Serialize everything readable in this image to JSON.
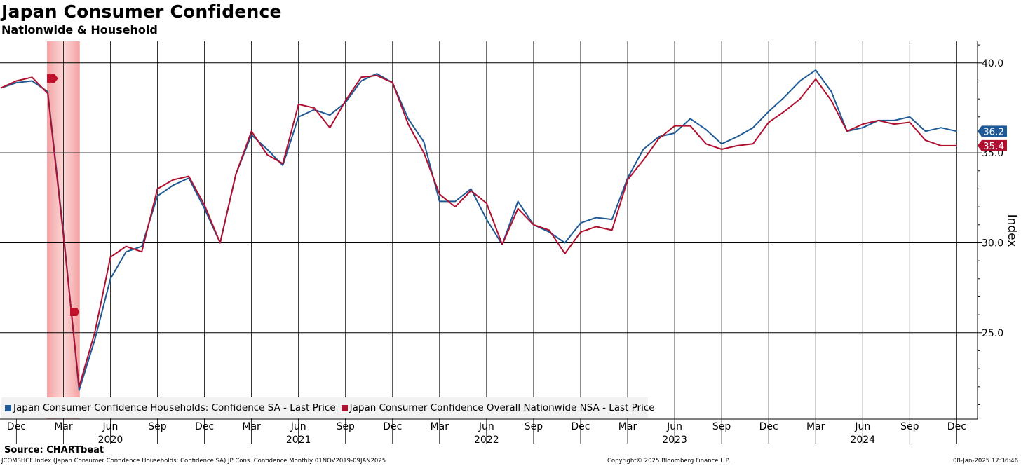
{
  "header": {
    "title": "Japan Consumer Confidence",
    "subtitle": "Nationwide & Household"
  },
  "footer": {
    "source": "Source: CHARTbeat",
    "ticker_line": "JCOMSHCF Index (Japan Consumer Confidence Households: Confidence SA) JP Cons. Confidence  Monthly 01NOV2019-09JAN2025",
    "copyright": "Copyright© 2025 Bloomberg Finance L.P.",
    "timestamp": "08-Jan-2025 17:36:46"
  },
  "chart_data": {
    "type": "line",
    "ylabel": "Index",
    "ylim": [
      20.2,
      41.2
    ],
    "yticks": [
      25.0,
      30.0,
      35.0,
      40.0
    ],
    "ytick_labels": [
      "25.0",
      "30.0",
      "35.0",
      "40.0"
    ],
    "grid": true,
    "x_start": "2019-11",
    "x_month_labels": [
      "Dec",
      "Mar",
      "Jun",
      "Sep",
      "Dec",
      "Mar",
      "Jun",
      "Sep",
      "Dec",
      "Mar",
      "Jun",
      "Sep",
      "Dec",
      "Mar",
      "Jun",
      "Sep",
      "Dec",
      "Mar",
      "Jun",
      "Sep",
      "Dec"
    ],
    "x_year_labels": [
      "2020",
      "2021",
      "2022",
      "2023",
      "2024"
    ],
    "shaded_period": [
      "2020-02",
      "2020-04"
    ],
    "legend_position": "bottom-left",
    "series": [
      {
        "name": "Japan Consumer Confidence Households: Confidence SA - Last Price",
        "color": "#1f5a96",
        "last_label": "36.2",
        "values": [
          38.6,
          38.9,
          39.0,
          38.4,
          30.6,
          21.8,
          24.6,
          28.0,
          29.5,
          29.8,
          32.6,
          33.2,
          33.6,
          31.9,
          30.0,
          33.8,
          36.0,
          35.2,
          34.3,
          37.0,
          37.4,
          37.1,
          37.8,
          39.0,
          39.4,
          38.9,
          36.9,
          35.6,
          32.3,
          32.3,
          33.0,
          31.3,
          29.9,
          32.3,
          31.0,
          30.6,
          30.0,
          31.1,
          31.4,
          31.3,
          33.6,
          35.2,
          35.9,
          36.1,
          36.9,
          36.3,
          35.5,
          35.9,
          36.4,
          37.3,
          38.1,
          39.0,
          39.6,
          38.4,
          36.2,
          36.4,
          36.8,
          36.8,
          37.0,
          36.2,
          36.4,
          36.2
        ],
        "data_labels": [
          "36.2"
        ]
      },
      {
        "name": "Japan Consumer Confidence Overall Nationwide NSA - Last Price",
        "color": "#b01030",
        "last_label": "35.4",
        "values": [
          38.6,
          39.0,
          39.2,
          38.3,
          30.4,
          22.0,
          25.0,
          29.2,
          29.8,
          29.5,
          33.0,
          33.5,
          33.7,
          32.1,
          30.0,
          33.8,
          36.2,
          34.9,
          34.4,
          37.7,
          37.5,
          36.4,
          37.9,
          39.2,
          39.3,
          38.9,
          36.6,
          35.0,
          32.7,
          32.0,
          32.9,
          32.2,
          29.9,
          31.9,
          31.0,
          30.7,
          29.4,
          30.6,
          30.9,
          30.7,
          33.5,
          34.6,
          35.8,
          36.5,
          36.5,
          35.5,
          35.2,
          35.4,
          35.5,
          36.7,
          37.3,
          38.0,
          39.1,
          37.9,
          36.2,
          36.6,
          36.8,
          36.6,
          36.7,
          35.7,
          35.4,
          35.4
        ],
        "data_labels": [
          "35.4"
        ]
      }
    ]
  }
}
